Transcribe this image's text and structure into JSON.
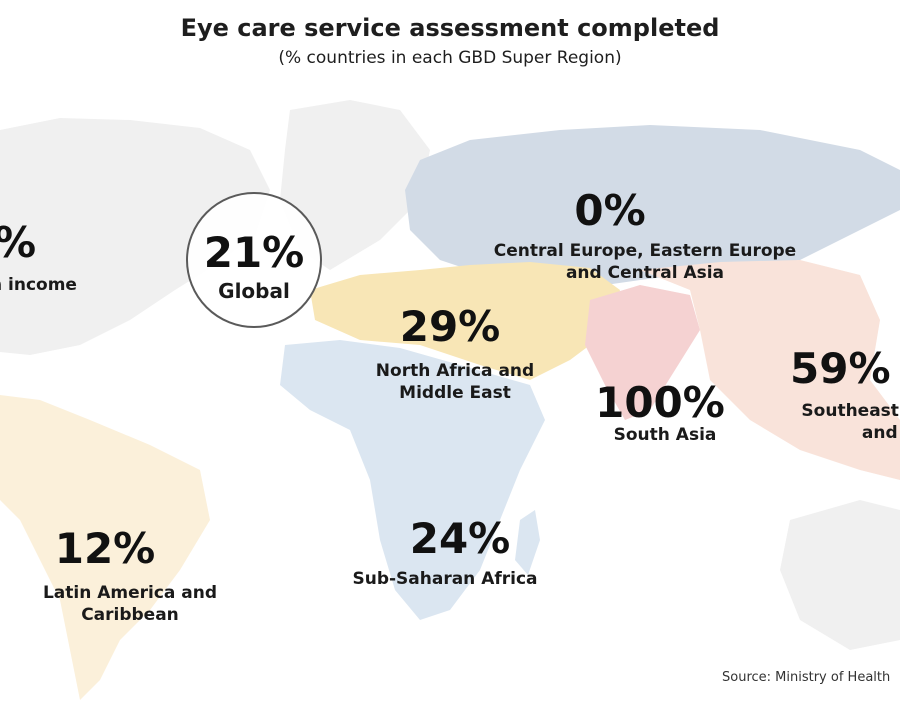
{
  "title": "Eye care service assessment completed",
  "subtitle": "(% countries in each GBD Super Region)",
  "source": "Source: Ministry of Health",
  "regions": {
    "high_income": {
      "value": "%",
      "label": "h income"
    },
    "global": {
      "value": "21%",
      "label": "Global"
    },
    "cee_ca": {
      "value": "0%",
      "label": "Central Europe, Eastern Europe\nand Central Asia"
    },
    "namena": {
      "value": "29%",
      "label": "North Africa and\nMiddle East"
    },
    "south_asia": {
      "value": "100%",
      "label": "South Asia"
    },
    "se_asia": {
      "value": "59%",
      "label": "Southeast A\nand O"
    },
    "latam": {
      "value": "12%",
      "label": "Latin America and\nCaribbean"
    },
    "ssa": {
      "value": "24%",
      "label": "Sub-Saharan Africa"
    }
  },
  "colors": {
    "cee_ca": "#d2dbe6",
    "namena": "#f8e6b6",
    "south_asia": "#f5d2d2",
    "se_asia": "#f9e3da",
    "latam": "#fbf0da",
    "ssa": "#dbe6f1",
    "neutral": "#f0f0f0"
  }
}
